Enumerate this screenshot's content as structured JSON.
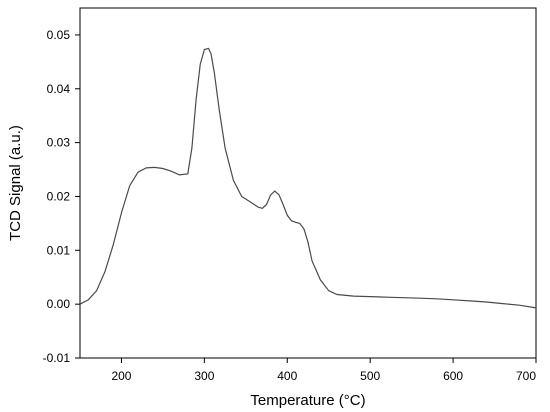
{
  "chart_data": {
    "type": "line",
    "xlabel": "Temperature (°C)",
    "ylabel": "TCD Signal (a.u.)",
    "xlim": [
      150,
      700
    ],
    "ylim": [
      -0.01,
      0.055
    ],
    "xticks": [
      200,
      300,
      400,
      500,
      600,
      700
    ],
    "yticks": [
      -0.01,
      0.0,
      0.01,
      0.02,
      0.03,
      0.04,
      0.05
    ],
    "xtick_labels": [
      "200",
      "300",
      "400",
      "500",
      "600",
      "700"
    ],
    "ytick_labels": [
      "-0.01",
      "0.00",
      "0.01",
      "0.02",
      "0.03",
      "0.04",
      "0.05"
    ],
    "grid": false,
    "series": [
      {
        "color": "#4a4a4a",
        "x": [
          150,
          160,
          170,
          180,
          190,
          200,
          210,
          220,
          230,
          240,
          250,
          260,
          270,
          280,
          285,
          290,
          295,
          300,
          305,
          308,
          312,
          318,
          325,
          335,
          345,
          355,
          365,
          370,
          375,
          380,
          385,
          390,
          395,
          400,
          405,
          410,
          415,
          420,
          425,
          430,
          440,
          450,
          460,
          480,
          500,
          520,
          540,
          560,
          580,
          600,
          620,
          640,
          660,
          680,
          700
        ],
        "y": [
          0.0,
          0.0008,
          0.0025,
          0.006,
          0.011,
          0.017,
          0.022,
          0.0245,
          0.0253,
          0.0254,
          0.0252,
          0.0247,
          0.024,
          0.0242,
          0.029,
          0.038,
          0.0445,
          0.0473,
          0.0475,
          0.0465,
          0.043,
          0.036,
          0.029,
          0.023,
          0.02,
          0.019,
          0.018,
          0.0178,
          0.0185,
          0.0203,
          0.021,
          0.0203,
          0.0185,
          0.0165,
          0.0155,
          0.0152,
          0.015,
          0.014,
          0.0115,
          0.008,
          0.0045,
          0.0025,
          0.0018,
          0.0015,
          0.0014,
          0.0013,
          0.0012,
          0.0011,
          0.001,
          0.0008,
          0.0006,
          0.0004,
          0.0001,
          -0.0002,
          -0.0007
        ]
      }
    ]
  }
}
